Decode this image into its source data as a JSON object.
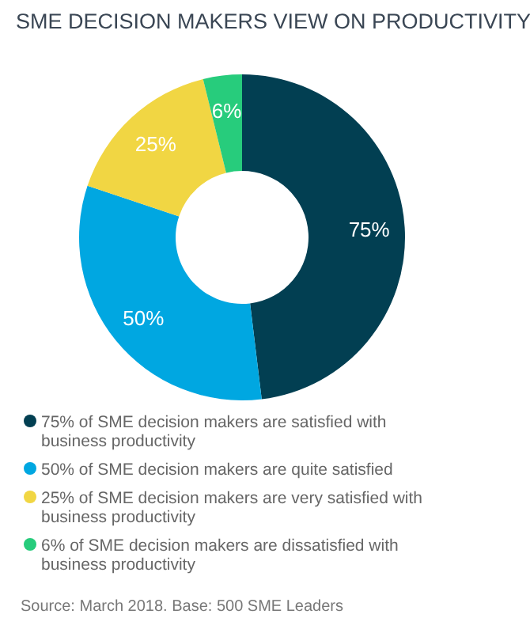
{
  "chart_data": {
    "type": "donut",
    "title": "SME DECISION MAKERS VIEW ON PRODUCTIVITY",
    "categories": [
      "75% of SME decision makers are satisfied with business productivity",
      "50% of SME decision makers are quite satisfied",
      "25% of SME decision makers are very satisfied with business productivity",
      "6% of SME decision makers are dissatisfied with business productivity"
    ],
    "values": [
      75,
      50,
      25,
      6
    ],
    "colors": [
      "#023f52",
      "#00a7e1",
      "#f1d643",
      "#27cc7c"
    ],
    "value_labels": [
      "75%",
      "50%",
      "25%",
      "6%"
    ],
    "legend": "bottom",
    "annotations": [
      "Source: March 2018. Base: 500 SME Leaders"
    ]
  }
}
